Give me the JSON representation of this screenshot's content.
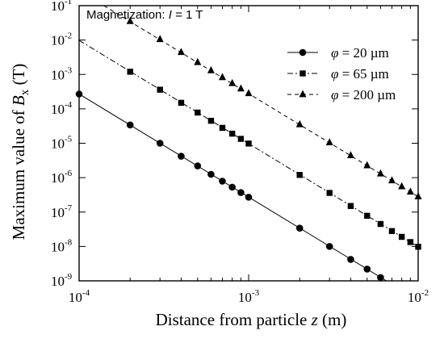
{
  "chart_data": {
    "type": "scatter",
    "x_scale": "log",
    "y_scale": "log",
    "xlim": [
      0.0001,
      0.01
    ],
    "ylim": [
      1e-09,
      0.1
    ],
    "annotation": {
      "prefix": "Magnetization: ",
      "variable": "I",
      "suffix": " = 1 T"
    },
    "xlabel": {
      "text": "Distance from particle ",
      "variable": "z",
      "unit": " (m)"
    },
    "ylabel": {
      "text": "Maximum value of ",
      "variable": "B",
      "subscript": "x",
      "unit": " (T)"
    },
    "x_ticks": [
      {
        "value": 0.0001,
        "base": "10",
        "exp": "-4"
      },
      {
        "value": 0.001,
        "base": "10",
        "exp": "-3"
      },
      {
        "value": 0.01,
        "base": "10",
        "exp": "-2"
      }
    ],
    "y_ticks": [
      {
        "value": 0.1,
        "base": "10",
        "exp": "-1"
      },
      {
        "value": 0.01,
        "base": "10",
        "exp": "-2"
      },
      {
        "value": 0.001,
        "base": "10",
        "exp": "-3"
      },
      {
        "value": 0.0001,
        "base": "10",
        "exp": "-4"
      },
      {
        "value": 1e-05,
        "base": "10",
        "exp": "-5"
      },
      {
        "value": 1e-06,
        "base": "10",
        "exp": "-6"
      },
      {
        "value": 1e-07,
        "base": "10",
        "exp": "-7"
      },
      {
        "value": 1e-08,
        "base": "10",
        "exp": "-8"
      },
      {
        "value": 1e-09,
        "base": "10",
        "exp": "-9"
      }
    ],
    "legend": {
      "placement": "top-right",
      "symbol": "φ",
      "entries": [
        {
          "eq": " = ",
          "value": "20 µm"
        },
        {
          "eq": " = ",
          "value": "65 µm"
        },
        {
          "eq": " = ",
          "value": "200 µm"
        }
      ]
    },
    "series": [
      {
        "marker": "circle",
        "line": "solid",
        "x": [
          0.0001,
          0.0002,
          0.0003,
          0.0004,
          0.0005,
          0.0006,
          0.0007,
          0.0008,
          0.0009,
          0.001,
          0.002,
          0.003,
          0.004,
          0.005,
          0.006
        ],
        "y": [
          0.00027,
          3.4e-05,
          1e-05,
          4.2e-06,
          2.2e-06,
          1.25e-06,
          7.9e-07,
          5.3e-07,
          3.7e-07,
          2.7e-07,
          3.4e-08,
          1e-08,
          4.2e-09,
          2.2e-09,
          1.25e-09
        ],
        "line_x": [
          0.0001,
          0.0065
        ],
        "line_y": [
          0.00027,
          1e-09
        ]
      },
      {
        "marker": "square",
        "line": "dash-dot",
        "x": [
          0.0002,
          0.0003,
          0.0004,
          0.0005,
          0.0006,
          0.0007,
          0.0008,
          0.0009,
          0.001,
          0.002,
          0.003,
          0.004,
          0.005,
          0.006,
          0.007,
          0.008,
          0.009,
          0.01
        ],
        "y": [
          0.0012,
          0.00036,
          0.00015,
          7.8e-05,
          4.5e-05,
          2.8e-05,
          1.9e-05,
          1.34e-05,
          9.8e-06,
          1.2e-06,
          3.6e-07,
          1.5e-07,
          7.8e-08,
          4.5e-08,
          2.8e-08,
          1.9e-08,
          1.34e-08,
          9.8e-09
        ],
        "line_x": [
          0.0001,
          0.01
        ],
        "line_y": [
          0.0098,
          9.8e-09
        ]
      },
      {
        "marker": "triangle",
        "line": "dashed",
        "x": [
          0.0002,
          0.0003,
          0.0004,
          0.0005,
          0.0006,
          0.0007,
          0.0008,
          0.0009,
          0.001,
          0.002,
          0.003,
          0.004,
          0.005,
          0.006,
          0.007,
          0.008,
          0.009,
          0.01
        ],
        "y": [
          0.035,
          0.0105,
          0.0044,
          0.00225,
          0.0013,
          0.00082,
          0.00055,
          0.000385,
          0.00028,
          3.5e-05,
          1.05e-05,
          4.4e-06,
          2.25e-06,
          1.3e-06,
          8.2e-07,
          5.5e-07,
          3.85e-07,
          2.8e-07
        ],
        "line_x": [
          0.00014,
          0.01
        ],
        "line_y": [
          0.1,
          2.8e-07
        ]
      }
    ]
  }
}
